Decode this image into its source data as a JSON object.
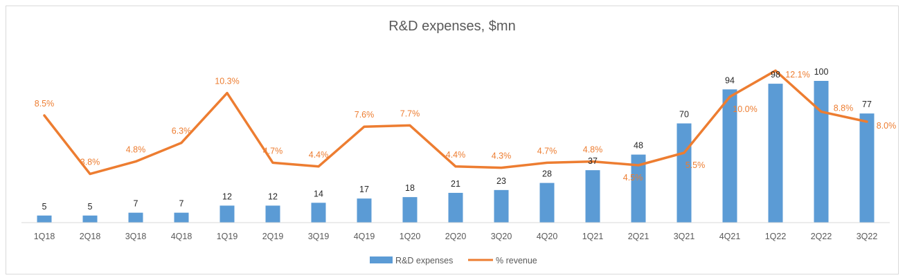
{
  "colors": {
    "bars": "#5b9bd5",
    "line": "#ed7d31",
    "axis": "#d9d9d9"
  },
  "chart_data": {
    "type": "bar",
    "title": "R&D expenses, $mn",
    "categories": [
      "1Q18",
      "2Q18",
      "3Q18",
      "4Q18",
      "1Q19",
      "2Q19",
      "3Q19",
      "4Q19",
      "1Q20",
      "2Q20",
      "3Q20",
      "4Q20",
      "1Q21",
      "2Q21",
      "3Q21",
      "4Q21",
      "1Q22",
      "2Q22",
      "3Q22"
    ],
    "ylim": [
      0,
      110
    ],
    "y2lim": [
      0,
      14
    ],
    "legend_position": "bottom",
    "series": [
      {
        "name": "R&D expenses",
        "type": "bar",
        "axis": "primary",
        "values": [
          5,
          5,
          7,
          7,
          12,
          12,
          14,
          17,
          18,
          21,
          23,
          28,
          37,
          48,
          70,
          94,
          98,
          100,
          77
        ],
        "labels": [
          "5",
          "5",
          "7",
          "7",
          "12",
          "12",
          "14",
          "17",
          "18",
          "21",
          "23",
          "28",
          "37",
          "48",
          "70",
          "94",
          "98",
          "100",
          "77"
        ]
      },
      {
        "name": "% revenue",
        "type": "line",
        "axis": "secondary",
        "values": [
          8.5,
          3.8,
          4.8,
          6.3,
          10.3,
          4.7,
          4.4,
          7.6,
          7.7,
          4.4,
          4.3,
          4.7,
          4.8,
          4.5,
          5.5,
          10.0,
          12.1,
          8.8,
          8.0
        ],
        "labels": [
          "8.5%",
          "3.8%",
          "4.8%",
          "6.3%",
          "10.3%",
          "4.7%",
          "4.4%",
          "7.6%",
          "7.7%",
          "4.4%",
          "4.3%",
          "4.7%",
          "4.8%",
          "4.5%",
          "5.5%",
          "10.0%",
          "12.1%",
          "8.8%",
          "8.0%"
        ]
      }
    ]
  }
}
